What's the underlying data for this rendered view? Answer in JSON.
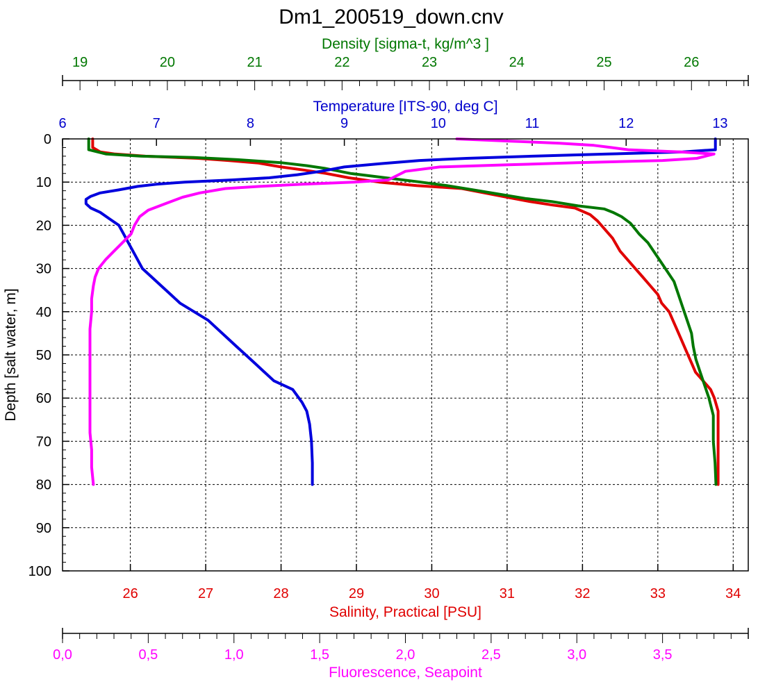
{
  "chart_data": {
    "type": "line",
    "title": "Dm1_200519_down.cnv",
    "y_axis": {
      "label": "Depth [salt water, m]",
      "range": [
        0,
        100
      ],
      "inverted": true,
      "ticks": [
        0,
        10,
        20,
        30,
        40,
        50,
        60,
        70,
        80,
        90,
        100
      ],
      "tick_labels": [
        "0",
        "10",
        "20",
        "30",
        "40",
        "50",
        "60",
        "70",
        "80",
        "90",
        "100"
      ]
    },
    "x_axes": [
      {
        "id": "density",
        "label": "Density [sigma-t, kg/m^3 ]",
        "color": "#007700",
        "position": "top",
        "range": [
          18.8,
          26.65
        ],
        "ticks": [
          19,
          20,
          21,
          22,
          23,
          24,
          25,
          26
        ],
        "tick_labels": [
          "19",
          "20",
          "21",
          "22",
          "23",
          "24",
          "25",
          "26"
        ]
      },
      {
        "id": "temperature",
        "label": "Temperature [ITS-90, deg C]",
        "color": "#0000cc",
        "position": "top",
        "range": [
          6.0,
          13.3
        ],
        "ticks": [
          6,
          7,
          8,
          9,
          10,
          11,
          12,
          13
        ],
        "tick_labels": [
          "6",
          "7",
          "8",
          "9",
          "10",
          "11",
          "12",
          "13"
        ]
      },
      {
        "id": "salinity",
        "label": "Salinity, Practical [PSU]",
        "color": "#e00000",
        "position": "bottom",
        "range": [
          25.1,
          34.2
        ],
        "ticks": [
          26,
          27,
          28,
          29,
          30,
          31,
          32,
          33,
          34
        ],
        "tick_labels": [
          "26",
          "27",
          "28",
          "29",
          "30",
          "31",
          "32",
          "33",
          "34"
        ]
      },
      {
        "id": "fluorescence",
        "label": "Fluorescence, Seapoint",
        "color": "#ff00ff",
        "position": "bottom",
        "range": [
          0,
          4.0
        ],
        "ticks": [
          0,
          0.5,
          1.0,
          1.5,
          2.0,
          2.5,
          3.0,
          3.5
        ],
        "tick_labels": [
          "0,0",
          "0,5",
          "1,0",
          "1,5",
          "2,0",
          "2,5",
          "3,0",
          "3,5"
        ]
      }
    ],
    "grid": true,
    "series": [
      {
        "axis": "salinity",
        "color": "#e00000",
        "points": [
          [
            25.5,
            0
          ],
          [
            25.5,
            2
          ],
          [
            25.6,
            3
          ],
          [
            25.8,
            3.5
          ],
          [
            26.2,
            4
          ],
          [
            26.9,
            4.5
          ],
          [
            27.3,
            5
          ],
          [
            27.7,
            5.6
          ],
          [
            28.0,
            6.5
          ],
          [
            28.3,
            7.2
          ],
          [
            28.6,
            8
          ],
          [
            28.9,
            9
          ],
          [
            29.3,
            10
          ],
          [
            29.8,
            10.8
          ],
          [
            30.4,
            11.5
          ],
          [
            30.7,
            12.5
          ],
          [
            31.0,
            13.5
          ],
          [
            31.3,
            14.5
          ],
          [
            31.6,
            15.3
          ],
          [
            31.9,
            16
          ],
          [
            32.1,
            17.5
          ],
          [
            32.2,
            19
          ],
          [
            32.3,
            21
          ],
          [
            32.4,
            23
          ],
          [
            32.5,
            26
          ],
          [
            32.6,
            28
          ],
          [
            32.7,
            30
          ],
          [
            32.8,
            32
          ],
          [
            32.9,
            34
          ],
          [
            33.0,
            36
          ],
          [
            33.05,
            38
          ],
          [
            33.15,
            40
          ],
          [
            33.2,
            42
          ],
          [
            33.25,
            44
          ],
          [
            33.3,
            46
          ],
          [
            33.35,
            48
          ],
          [
            33.4,
            50
          ],
          [
            33.45,
            52
          ],
          [
            33.5,
            54
          ],
          [
            33.55,
            55
          ],
          [
            33.6,
            56
          ],
          [
            33.65,
            57
          ],
          [
            33.7,
            58
          ],
          [
            33.75,
            60
          ],
          [
            33.8,
            63
          ],
          [
            33.8,
            66
          ],
          [
            33.8,
            70
          ],
          [
            33.8,
            75
          ],
          [
            33.8,
            80
          ]
        ]
      },
      {
        "axis": "density",
        "color": "#007700",
        "points": [
          [
            19.1,
            0
          ],
          [
            19.1,
            2.5
          ],
          [
            19.3,
            3.5
          ],
          [
            19.7,
            4
          ],
          [
            20.3,
            4.3
          ],
          [
            20.8,
            4.8
          ],
          [
            21.3,
            5.5
          ],
          [
            21.6,
            6.2
          ],
          [
            21.8,
            6.8
          ],
          [
            22.1,
            8
          ],
          [
            22.5,
            9
          ],
          [
            22.9,
            10
          ],
          [
            23.2,
            10.8
          ],
          [
            23.5,
            11.8
          ],
          [
            23.8,
            12.8
          ],
          [
            24.1,
            13.8
          ],
          [
            24.4,
            14.5
          ],
          [
            24.7,
            15.5
          ],
          [
            25.0,
            16.2
          ],
          [
            25.1,
            17
          ],
          [
            25.2,
            18
          ],
          [
            25.3,
            19.5
          ],
          [
            25.4,
            22
          ],
          [
            25.5,
            24
          ],
          [
            25.6,
            27
          ],
          [
            25.7,
            30
          ],
          [
            25.8,
            33
          ],
          [
            25.85,
            36
          ],
          [
            25.9,
            39
          ],
          [
            25.95,
            42
          ],
          [
            26.0,
            45
          ],
          [
            26.02,
            48
          ],
          [
            26.05,
            51
          ],
          [
            26.1,
            54
          ],
          [
            26.15,
            57
          ],
          [
            26.2,
            60
          ],
          [
            26.25,
            64
          ],
          [
            26.25,
            70
          ],
          [
            26.27,
            75
          ],
          [
            26.28,
            80
          ]
        ]
      },
      {
        "axis": "temperature",
        "color": "#0000dd",
        "points": [
          [
            12.95,
            0
          ],
          [
            12.95,
            2.5
          ],
          [
            12.6,
            3
          ],
          [
            11.8,
            3.5
          ],
          [
            11.0,
            4
          ],
          [
            10.3,
            4.5
          ],
          [
            9.8,
            5
          ],
          [
            9.4,
            5.7
          ],
          [
            9.0,
            6.5
          ],
          [
            8.75,
            7.5
          ],
          [
            8.5,
            8.3
          ],
          [
            8.2,
            9
          ],
          [
            7.8,
            9.5
          ],
          [
            7.3,
            10
          ],
          [
            7.0,
            10.5
          ],
          [
            6.8,
            11
          ],
          [
            6.6,
            11.8
          ],
          [
            6.4,
            12.5
          ],
          [
            6.3,
            13.3
          ],
          [
            6.25,
            14
          ],
          [
            6.25,
            15
          ],
          [
            6.3,
            16
          ],
          [
            6.4,
            17
          ],
          [
            6.5,
            18.5
          ],
          [
            6.6,
            20
          ],
          [
            6.65,
            22
          ],
          [
            6.7,
            24
          ],
          [
            6.75,
            26
          ],
          [
            6.8,
            28
          ],
          [
            6.85,
            30
          ],
          [
            6.95,
            32
          ],
          [
            7.05,
            34
          ],
          [
            7.15,
            36
          ],
          [
            7.25,
            38
          ],
          [
            7.4,
            40
          ],
          [
            7.55,
            42
          ],
          [
            7.65,
            44
          ],
          [
            7.75,
            46
          ],
          [
            7.85,
            48
          ],
          [
            7.95,
            50
          ],
          [
            8.05,
            52
          ],
          [
            8.15,
            54
          ],
          [
            8.25,
            56
          ],
          [
            8.45,
            58
          ],
          [
            8.5,
            59.5
          ],
          [
            8.55,
            61
          ],
          [
            8.6,
            63
          ],
          [
            8.63,
            66
          ],
          [
            8.65,
            70
          ],
          [
            8.66,
            75
          ],
          [
            8.66,
            80
          ]
        ]
      },
      {
        "axis": "fluorescence",
        "color": "#ff00ff",
        "points": [
          [
            2.3,
            0
          ],
          [
            2.6,
            0.5
          ],
          [
            2.9,
            1
          ],
          [
            3.1,
            1.5
          ],
          [
            3.2,
            2
          ],
          [
            3.3,
            2.5
          ],
          [
            3.6,
            3
          ],
          [
            3.8,
            3.5
          ],
          [
            3.75,
            4
          ],
          [
            3.7,
            4.5
          ],
          [
            3.5,
            5
          ],
          [
            3.0,
            5.5
          ],
          [
            2.6,
            6
          ],
          [
            2.2,
            6.5
          ],
          [
            2.0,
            7.5
          ],
          [
            1.95,
            8.5
          ],
          [
            1.9,
            9.5
          ],
          [
            1.7,
            10
          ],
          [
            1.4,
            10.5
          ],
          [
            1.15,
            11
          ],
          [
            0.95,
            11.5
          ],
          [
            0.8,
            12.5
          ],
          [
            0.7,
            13.5
          ],
          [
            0.6,
            15
          ],
          [
            0.5,
            16.5
          ],
          [
            0.45,
            18
          ],
          [
            0.42,
            20
          ],
          [
            0.4,
            22
          ],
          [
            0.35,
            24
          ],
          [
            0.3,
            26
          ],
          [
            0.25,
            28
          ],
          [
            0.21,
            30
          ],
          [
            0.19,
            32
          ],
          [
            0.18,
            34
          ],
          [
            0.17,
            37
          ],
          [
            0.17,
            40
          ],
          [
            0.16,
            44
          ],
          [
            0.16,
            48
          ],
          [
            0.16,
            52
          ],
          [
            0.16,
            56
          ],
          [
            0.16,
            60
          ],
          [
            0.16,
            64
          ],
          [
            0.16,
            68
          ],
          [
            0.17,
            72
          ],
          [
            0.17,
            76
          ],
          [
            0.18,
            80
          ]
        ]
      }
    ]
  }
}
